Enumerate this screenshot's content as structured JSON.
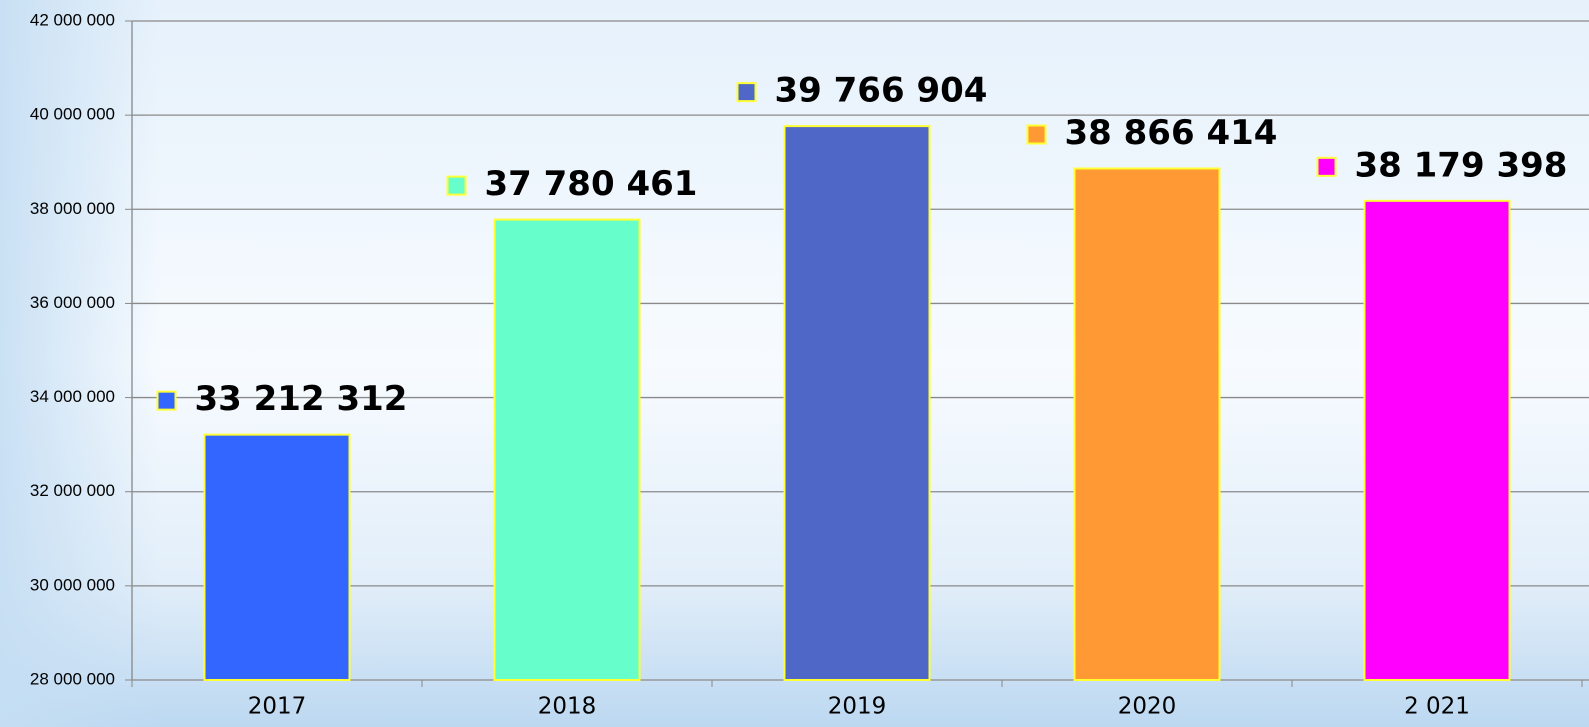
{
  "chart_data": {
    "type": "bar",
    "categories": [
      "2017",
      "2018",
      "2019",
      "2020",
      "2 021"
    ],
    "values": [
      33212312,
      37780461,
      39766904,
      38866414,
      38179398
    ],
    "value_labels": [
      "33 212 312",
      "37 780 461",
      "39 766 904",
      "38 866 414",
      "38 179 398"
    ],
    "colors": [
      "#3366ff",
      "#66ffcc",
      "#4f67c6",
      "#ff9933",
      "#ff00ff"
    ],
    "ylim": [
      28000000,
      42000000
    ],
    "yticks": [
      {
        "value": 28000000,
        "label": "28 000 000"
      },
      {
        "value": 30000000,
        "label": "30 000 000"
      },
      {
        "value": 32000000,
        "label": "32 000 000"
      },
      {
        "value": 34000000,
        "label": "34 000 000"
      },
      {
        "value": 36000000,
        "label": "36 000 000"
      },
      {
        "value": 38000000,
        "label": "38 000 000"
      },
      {
        "value": 40000000,
        "label": "40 000 000"
      },
      {
        "value": 42000000,
        "label": "42 000 000"
      }
    ],
    "grid": true
  }
}
